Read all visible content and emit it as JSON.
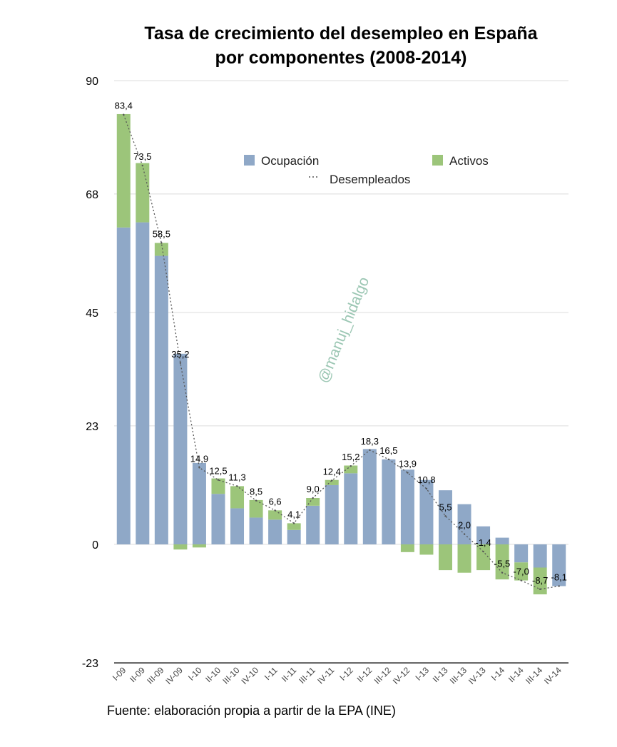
{
  "chart_data": {
    "type": "bar",
    "title_lines": [
      "Tasa de crecimiento del desempleo en España",
      "por componentes (2008-2014)"
    ],
    "source": "Fuente: elaboración propia a partir de la EPA (INE)",
    "watermark": "@manuj_hidalgo",
    "ylim": [
      -23,
      90
    ],
    "yticks": [
      90,
      68,
      45,
      23,
      0,
      -23
    ],
    "grid": true,
    "legend": {
      "ocupacion": "Ocupación",
      "activos": "Activos",
      "desempleados": "Desempleados",
      "placement": "top-center"
    },
    "colors": {
      "ocupacion": "#8fa8c7",
      "activos": "#9cc57a",
      "desempleados": "#555555"
    },
    "categories": [
      "I-09",
      "II-09",
      "III-09",
      "IV-09",
      "I-10",
      "II-10",
      "III-10",
      "IV-10",
      "I-11",
      "II-11",
      "III-11",
      "IV-11",
      "I-12",
      "II-12",
      "III-12",
      "IV-12",
      "I-13",
      "II-13",
      "III-13",
      "IV-13",
      "I-14",
      "II-14",
      "III-14",
      "IV-14"
    ],
    "series": [
      {
        "name": "Ocupación",
        "stack": "bar",
        "values": [
          61.5,
          62.5,
          56,
          37,
          15.8,
          9.8,
          7,
          5.2,
          4.8,
          2.8,
          7.5,
          11.5,
          13.8,
          18.5,
          16.5,
          14.5,
          12.5,
          10.5,
          7.8,
          3.5,
          1.3,
          -3.5,
          -4.5,
          -8.1
        ]
      },
      {
        "name": "Activos",
        "stack": "bar",
        "values": [
          22,
          11.5,
          2.5,
          -1,
          -0.6,
          3,
          4.3,
          3.4,
          1.8,
          1.3,
          1.5,
          1,
          1.5,
          0,
          0,
          -1.5,
          -2,
          -5,
          -5.5,
          -5,
          -6.8,
          -3.5,
          -5.2,
          0
        ]
      },
      {
        "name": "Desempleados",
        "type": "line",
        "values": [
          83.4,
          73.5,
          58.5,
          35.2,
          14.9,
          12.5,
          11.3,
          8.5,
          6.6,
          4.1,
          9.0,
          12.4,
          15.2,
          18.3,
          16.5,
          13.9,
          10.8,
          5.5,
          2.0,
          -1.4,
          -5.5,
          -7.0,
          -8.7,
          -8.1
        ]
      }
    ],
    "data_labels": [
      "83,4",
      "73,5",
      "58,5",
      "35,2",
      "14,9",
      "12,5",
      "11,3",
      "8,5",
      "6,6",
      "4,1",
      "9,0",
      "12,4",
      "15,2",
      "18,3",
      "16,5",
      "13,9",
      "10,8",
      "5,5",
      "2,0",
      "-1,4",
      "-5,5",
      "-7,0",
      "-8,7",
      "-8,1"
    ]
  }
}
